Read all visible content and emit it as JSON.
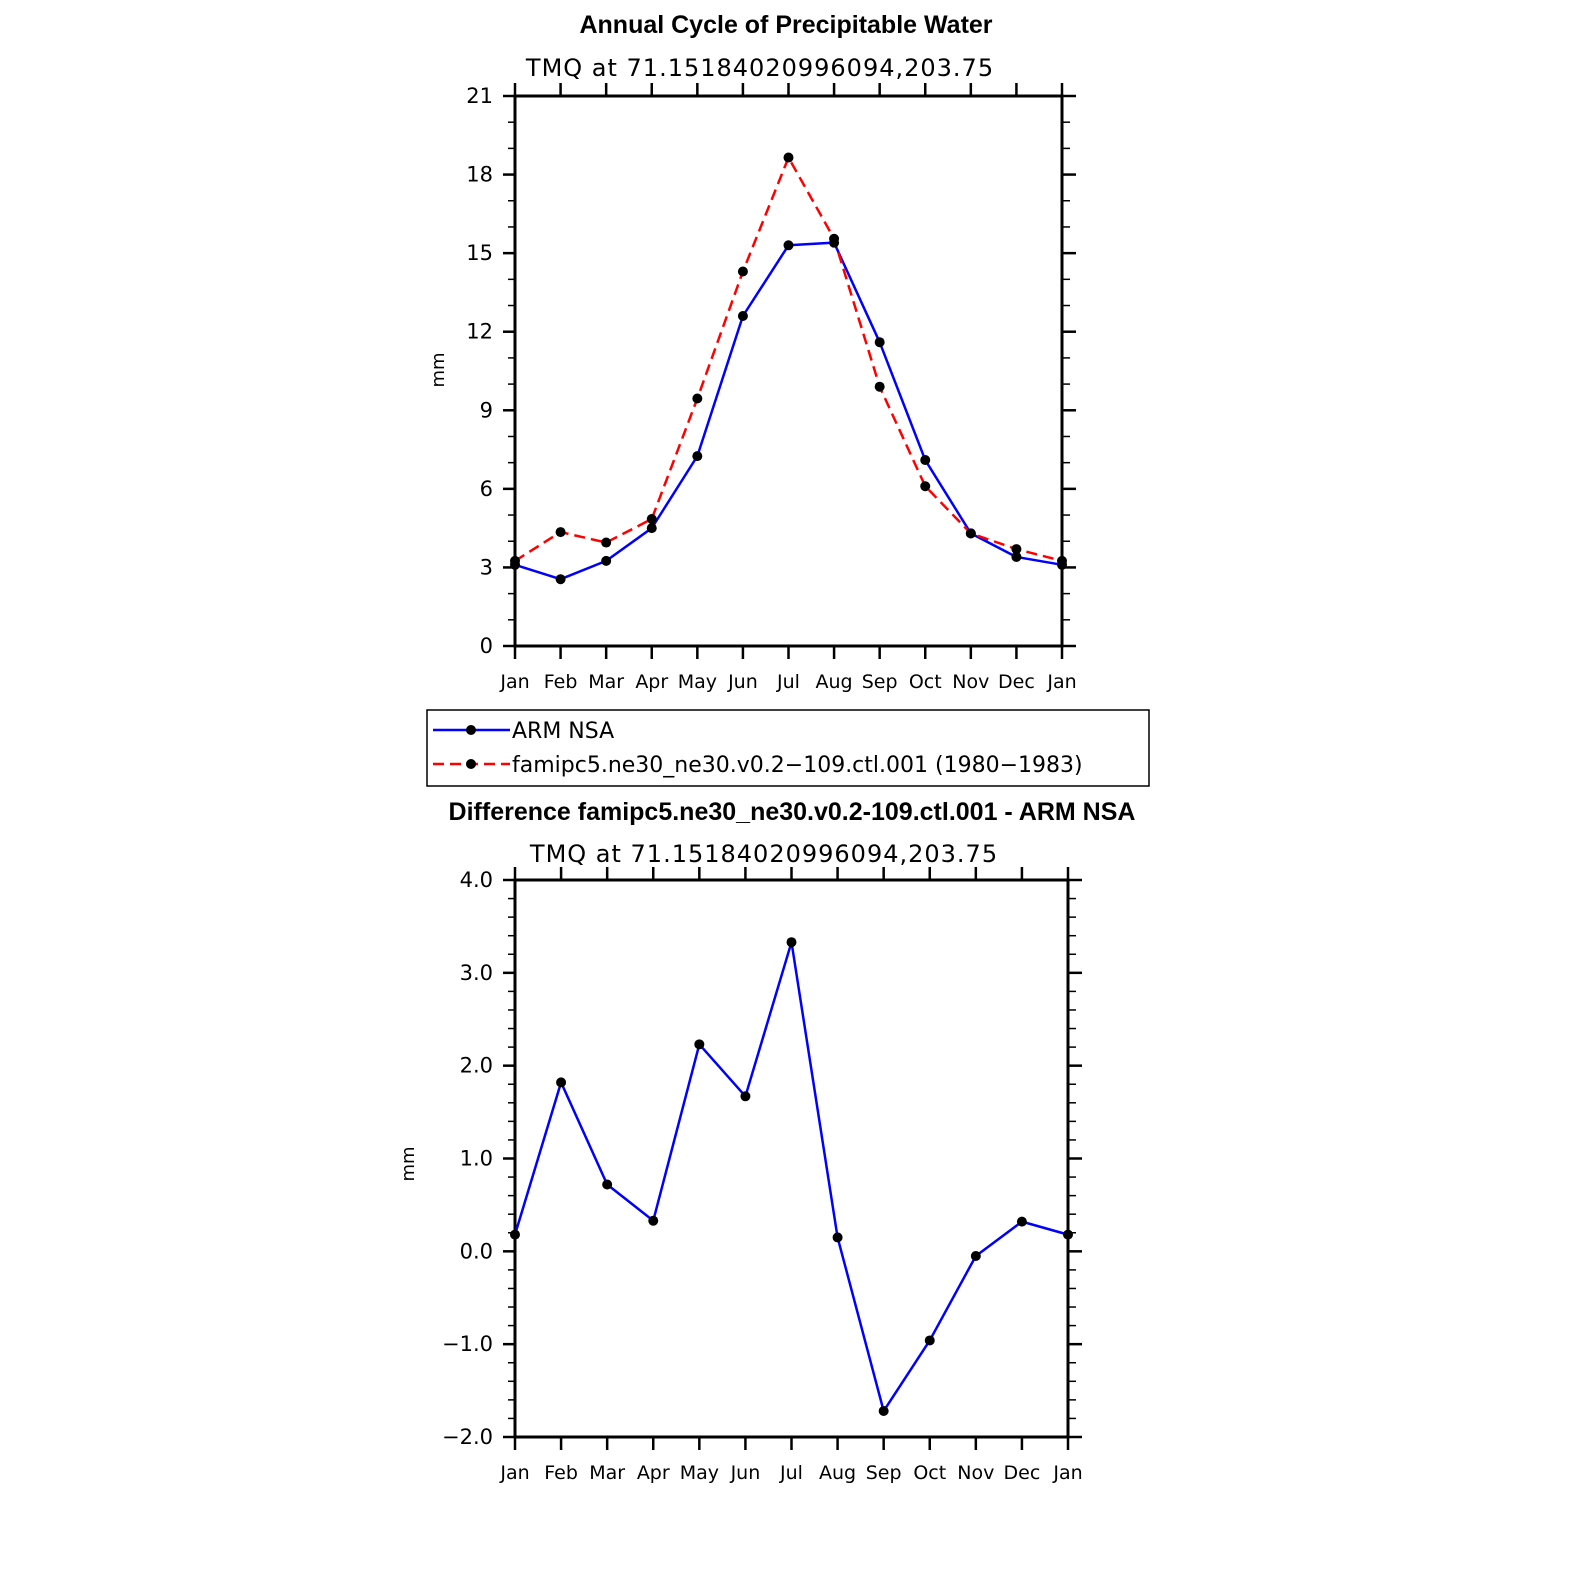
{
  "chart_data": [
    {
      "type": "line",
      "title": "Annual Cycle of Precipitable Water",
      "subtitle": "TMQ  at  71.15184020996094,203.75",
      "ylabel": "mm",
      "xlabel": "",
      "ylim": [
        0,
        21
      ],
      "yticks": [
        0,
        3,
        6,
        9,
        12,
        15,
        18,
        21
      ],
      "ytick_labels": [
        "0",
        "3",
        "6",
        "9",
        "12",
        "15",
        "18",
        "21"
      ],
      "categories": [
        "Jan",
        "Feb",
        "Mar",
        "Apr",
        "May",
        "Jun",
        "Jul",
        "Aug",
        "Sep",
        "Oct",
        "Nov",
        "Dec",
        "Jan"
      ],
      "series": [
        {
          "name": "ARM NSA",
          "color": "#0000ff",
          "dash": "solid",
          "values": [
            3.1,
            2.55,
            3.25,
            4.5,
            7.25,
            12.6,
            15.3,
            15.4,
            11.6,
            7.1,
            4.3,
            3.4,
            3.1
          ]
        },
        {
          "name": "famipc5.ne30_ne30.v0.2−109.ctl.001 (1980−1983)",
          "color": "#ff0000",
          "dash": "dashed",
          "values": [
            3.25,
            4.35,
            3.95,
            4.85,
            9.45,
            14.3,
            18.65,
            15.55,
            9.9,
            6.1,
            4.3,
            3.7,
            3.25
          ]
        }
      ],
      "legend": {
        "placement": "below"
      }
    },
    {
      "type": "line",
      "title": "Difference famipc5.ne30_ne30.v0.2-109.ctl.001 - ARM NSA",
      "subtitle": "TMQ  at  71.15184020996094,203.75",
      "ylabel": "mm",
      "xlabel": "",
      "ylim": [
        -2.0,
        4.0
      ],
      "yticks": [
        -2.0,
        -1.0,
        0.0,
        1.0,
        2.0,
        3.0,
        4.0
      ],
      "ytick_labels": [
        "−2.0",
        "−1.0",
        "0.0",
        "1.0",
        "2.0",
        "3.0",
        "4.0"
      ],
      "categories": [
        "Jan",
        "Feb",
        "Mar",
        "Apr",
        "May",
        "Jun",
        "Jul",
        "Aug",
        "Sep",
        "Oct",
        "Nov",
        "Dec",
        "Jan"
      ],
      "series": [
        {
          "name": "Difference",
          "color": "#0000ff",
          "dash": "solid",
          "values": [
            0.18,
            1.82,
            0.72,
            0.33,
            2.23,
            1.67,
            3.33,
            0.15,
            -1.72,
            -0.96,
            -0.05,
            0.32,
            0.18
          ]
        }
      ]
    }
  ]
}
